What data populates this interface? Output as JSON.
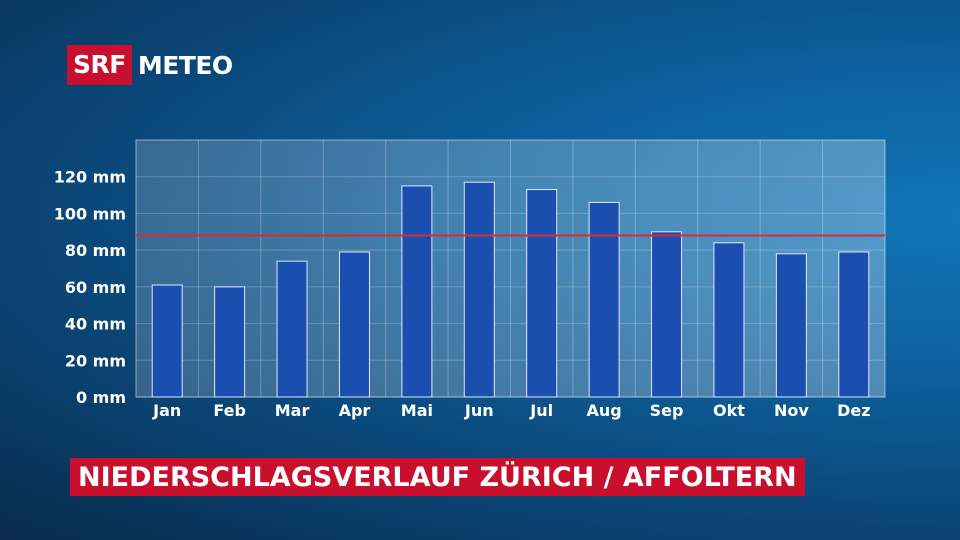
{
  "logo": {
    "brand": "SRF",
    "product": "METEO"
  },
  "title": "NIEDERSCHLAGSVERLAUF ZÜRICH / AFFOLTERN",
  "colors": {
    "bar": "#1a4fb0",
    "reference_line": "#d32f2f",
    "title_bg": "#c8102e"
  },
  "chart_data": {
    "type": "bar",
    "categories": [
      "Jan",
      "Feb",
      "Mar",
      "Apr",
      "Mai",
      "Jun",
      "Jul",
      "Aug",
      "Sep",
      "Okt",
      "Nov",
      "Dez"
    ],
    "values": [
      61,
      60,
      74,
      79,
      115,
      117,
      113,
      106,
      90,
      84,
      78,
      79
    ],
    "ylim": [
      0,
      140
    ],
    "yticks": [
      0,
      20,
      40,
      60,
      80,
      100,
      120
    ],
    "ytick_labels": [
      "0 mm",
      "20 mm",
      "40 mm",
      "60 mm",
      "80 mm",
      "100 mm",
      "120 mm"
    ],
    "reference_line": 88,
    "grid": true
  }
}
